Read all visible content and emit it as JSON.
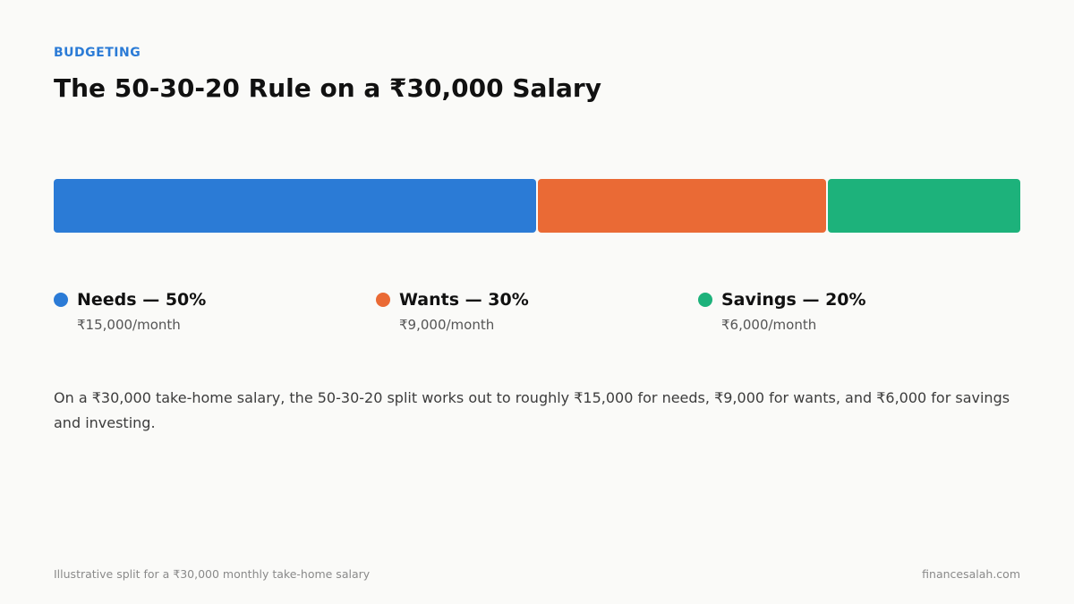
{
  "eyebrow": "BUDGETING",
  "title": "The 50-30-20 Rule on a ₹30,000 Salary",
  "colors": {
    "accent": "#2b7bd6",
    "needs": "#2b7bd6",
    "wants": "#ea6a35",
    "savings": "#1db27b"
  },
  "chart_data": {
    "type": "bar",
    "stacked": true,
    "orientation": "horizontal",
    "categories": [
      "Needs",
      "Wants",
      "Savings"
    ],
    "values": [
      50,
      30,
      20
    ],
    "unit": "%",
    "amounts": [
      15000,
      9000,
      6000
    ],
    "total": 30000,
    "legend_position": "bottom"
  },
  "legend": [
    {
      "label": "Needs — 50%",
      "amount": "₹15,000/month",
      "color": "#2b7bd6"
    },
    {
      "label": "Wants — 30%",
      "amount": "₹9,000/month",
      "color": "#ea6a35"
    },
    {
      "label": "Savings — 20%",
      "amount": "₹6,000/month",
      "color": "#1db27b"
    }
  ],
  "description": "On a ₹30,000 take-home salary, the 50-30-20 split works out to roughly ₹15,000 for needs, ₹9,000 for wants, and ₹6,000 for savings and investing.",
  "footer": {
    "note": "Illustrative split for a ₹30,000 monthly take-home salary",
    "source": "financesalah.com"
  }
}
